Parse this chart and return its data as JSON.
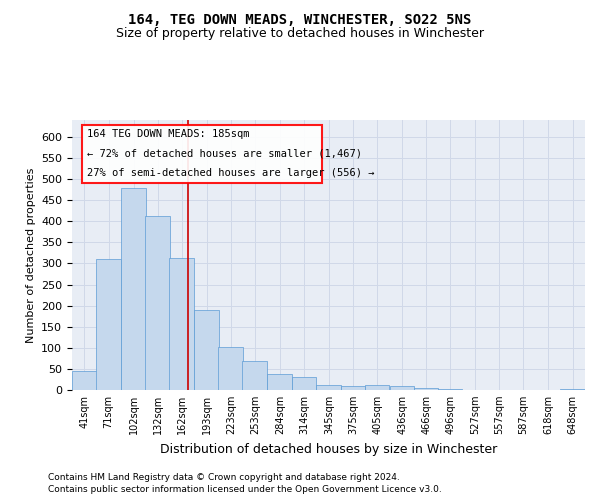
{
  "title": "164, TEG DOWN MEADS, WINCHESTER, SO22 5NS",
  "subtitle": "Size of property relative to detached houses in Winchester",
  "xlabel": "Distribution of detached houses by size in Winchester",
  "ylabel": "Number of detached properties",
  "footer_line1": "Contains HM Land Registry data © Crown copyright and database right 2024.",
  "footer_line2": "Contains public sector information licensed under the Open Government Licence v3.0.",
  "annotation_line1": "164 TEG DOWN MEADS: 185sqm",
  "annotation_line2": "← 72% of detached houses are smaller (1,467)",
  "annotation_line3": "27% of semi-detached houses are larger (556) →",
  "bar_color": "#c5d8ed",
  "bar_edge_color": "#5b9bd5",
  "vline_color": "#cc0000",
  "vline_x": 185,
  "categories": [
    "41sqm",
    "71sqm",
    "102sqm",
    "132sqm",
    "162sqm",
    "193sqm",
    "223sqm",
    "253sqm",
    "284sqm",
    "314sqm",
    "345sqm",
    "375sqm",
    "405sqm",
    "436sqm",
    "466sqm",
    "496sqm",
    "527sqm",
    "557sqm",
    "587sqm",
    "618sqm",
    "648sqm"
  ],
  "bin_edges": [
    41,
    71,
    102,
    132,
    162,
    193,
    223,
    253,
    284,
    314,
    345,
    375,
    405,
    436,
    466,
    496,
    527,
    557,
    587,
    618,
    648
  ],
  "bin_width": 31,
  "values": [
    45,
    311,
    480,
    413,
    313,
    190,
    102,
    68,
    37,
    30,
    12,
    10,
    12,
    10,
    5,
    3,
    1,
    0,
    1,
    0,
    3
  ],
  "ylim": [
    0,
    640
  ],
  "yticks": [
    0,
    50,
    100,
    150,
    200,
    250,
    300,
    350,
    400,
    450,
    500,
    550,
    600
  ],
  "grid_color": "#d0d8e8",
  "background_color": "#e8edf5",
  "fig_background": "#ffffff",
  "title_fontsize": 10,
  "subtitle_fontsize": 9,
  "ylabel_fontsize": 8,
  "xlabel_fontsize": 9,
  "ytick_fontsize": 8,
  "xtick_fontsize": 7,
  "footer_fontsize": 6.5,
  "annot_fontsize": 7.5
}
